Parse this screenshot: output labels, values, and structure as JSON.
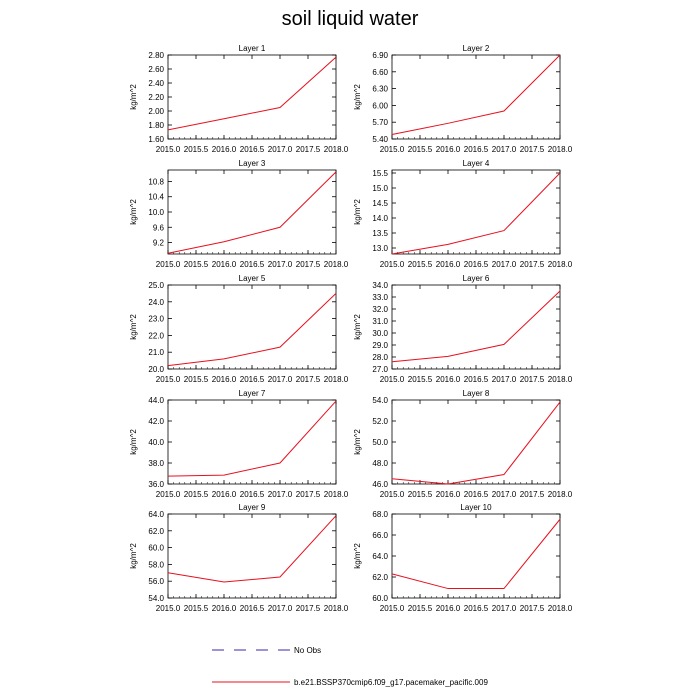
{
  "title": "soil liquid water",
  "legend": {
    "entries": [
      {
        "label": "No Obs",
        "style": "dashed",
        "color": "#3a2aa8"
      },
      {
        "label": "b.e21.BSSP370cmip6.f09_g17.pacemaker_pacific.009",
        "style": "solid",
        "color": "#e8101e"
      }
    ]
  },
  "chart_data": [
    {
      "type": "line",
      "title": "Layer 1",
      "ylabel": "kg/m^2",
      "x": [
        2015,
        2016,
        2017,
        2018
      ],
      "xlim": [
        2015,
        2018
      ],
      "xticks": [
        "2015.0",
        "2015.5",
        "2016.0",
        "2016.5",
        "2017.0",
        "2017.5",
        "2018.0"
      ],
      "ylim": [
        1.6,
        2.8
      ],
      "yticks": [
        "1.60",
        "1.80",
        "2.00",
        "2.20",
        "2.40",
        "2.60",
        "2.80"
      ],
      "series": [
        {
          "name": "b.e21.BSSP370cmip6.f09_g17.pacemaker_pacific.009",
          "values": [
            1.73,
            1.89,
            2.05,
            2.77
          ]
        }
      ]
    },
    {
      "type": "line",
      "title": "Layer 2",
      "ylabel": "kg/m^2",
      "x": [
        2015,
        2016,
        2017,
        2018
      ],
      "xlim": [
        2015,
        2018
      ],
      "xticks": [
        "2015.0",
        "2015.5",
        "2016.0",
        "2016.5",
        "2017.0",
        "2017.5",
        "2018.0"
      ],
      "ylim": [
        5.4,
        6.9
      ],
      "yticks": [
        "5.40",
        "5.70",
        "6.00",
        "6.30",
        "6.60",
        "6.90"
      ],
      "series": [
        {
          "name": "b.e21.BSSP370cmip6.f09_g17.pacemaker_pacific.009",
          "values": [
            5.48,
            5.68,
            5.9,
            6.9
          ]
        }
      ]
    },
    {
      "type": "line",
      "title": "Layer 3",
      "ylabel": "kg/m^2",
      "x": [
        2015,
        2016,
        2017,
        2018
      ],
      "xlim": [
        2015,
        2018
      ],
      "xticks": [
        "2015.0",
        "2015.5",
        "2016.0",
        "2016.5",
        "2017.0",
        "2017.5",
        "2018.0"
      ],
      "ylim": [
        8.9,
        11.1
      ],
      "yticks": [
        "9.2",
        "9.6",
        "10.0",
        "10.4",
        "10.8"
      ],
      "series": [
        {
          "name": "b.e21.BSSP370cmip6.f09_g17.pacemaker_pacific.009",
          "values": [
            8.92,
            9.22,
            9.6,
            11.05
          ]
        }
      ]
    },
    {
      "type": "line",
      "title": "Layer 4",
      "ylabel": "kg/m^2",
      "x": [
        2015,
        2016,
        2017,
        2018
      ],
      "xlim": [
        2015,
        2018
      ],
      "xticks": [
        "2015.0",
        "2015.5",
        "2016.0",
        "2016.5",
        "2017.0",
        "2017.5",
        "2018.0"
      ],
      "ylim": [
        12.8,
        15.6
      ],
      "yticks": [
        "13.0",
        "13.5",
        "14.0",
        "14.5",
        "15.0",
        "15.5"
      ],
      "series": [
        {
          "name": "b.e21.BSSP370cmip6.f09_g17.pacemaker_pacific.009",
          "values": [
            12.8,
            13.12,
            13.58,
            15.5
          ]
        }
      ]
    },
    {
      "type": "line",
      "title": "Layer 5",
      "ylabel": "kg/m^2",
      "x": [
        2015,
        2016,
        2017,
        2018
      ],
      "xlim": [
        2015,
        2018
      ],
      "xticks": [
        "2015.0",
        "2015.5",
        "2016.0",
        "2016.5",
        "2017.0",
        "2017.5",
        "2018.0"
      ],
      "ylim": [
        20.0,
        25.0
      ],
      "yticks": [
        "20.0",
        "21.0",
        "22.0",
        "23.0",
        "24.0",
        "25.0"
      ],
      "series": [
        {
          "name": "b.e21.BSSP370cmip6.f09_g17.pacemaker_pacific.009",
          "values": [
            20.2,
            20.6,
            21.3,
            24.5
          ]
        }
      ]
    },
    {
      "type": "line",
      "title": "Layer 6",
      "ylabel": "kg/m^2",
      "x": [
        2015,
        2016,
        2017,
        2018
      ],
      "xlim": [
        2015,
        2018
      ],
      "xticks": [
        "2015.0",
        "2015.5",
        "2016.0",
        "2016.5",
        "2017.0",
        "2017.5",
        "2018.0"
      ],
      "ylim": [
        27.0,
        34.0
      ],
      "yticks": [
        "27.0",
        "28.0",
        "29.0",
        "30.0",
        "31.0",
        "32.0",
        "33.0",
        "34.0"
      ],
      "series": [
        {
          "name": "b.e21.BSSP370cmip6.f09_g17.pacemaker_pacific.009",
          "values": [
            27.6,
            28.05,
            29.05,
            33.5
          ]
        }
      ]
    },
    {
      "type": "line",
      "title": "Layer 7",
      "ylabel": "kg/m^2",
      "x": [
        2015,
        2016,
        2017,
        2018
      ],
      "xlim": [
        2015,
        2018
      ],
      "xticks": [
        "2015.0",
        "2015.5",
        "2016.0",
        "2016.5",
        "2017.0",
        "2017.5",
        "2018.0"
      ],
      "ylim": [
        36.0,
        44.0
      ],
      "yticks": [
        "36.0",
        "38.0",
        "40.0",
        "42.0",
        "44.0"
      ],
      "series": [
        {
          "name": "b.e21.BSSP370cmip6.f09_g17.pacemaker_pacific.009",
          "values": [
            36.75,
            36.85,
            38.0,
            43.9
          ]
        }
      ]
    },
    {
      "type": "line",
      "title": "Layer 8",
      "ylabel": "kg/m^2",
      "x": [
        2015,
        2016,
        2017,
        2018
      ],
      "xlim": [
        2015,
        2018
      ],
      "xticks": [
        "2015.0",
        "2015.5",
        "2016.0",
        "2016.5",
        "2017.0",
        "2017.5",
        "2018.0"
      ],
      "ylim": [
        46.0,
        54.0
      ],
      "yticks": [
        "46.0",
        "48.0",
        "50.0",
        "52.0",
        "54.0"
      ],
      "series": [
        {
          "name": "b.e21.BSSP370cmip6.f09_g17.pacemaker_pacific.009",
          "values": [
            46.5,
            46.0,
            46.9,
            53.8
          ]
        }
      ]
    },
    {
      "type": "line",
      "title": "Layer 9",
      "ylabel": "kg/m^2",
      "x": [
        2015,
        2016,
        2017,
        2018
      ],
      "xlim": [
        2015,
        2018
      ],
      "xticks": [
        "2015.0",
        "2015.5",
        "2016.0",
        "2016.5",
        "2017.0",
        "2017.5",
        "2018.0"
      ],
      "ylim": [
        54.0,
        64.0
      ],
      "yticks": [
        "54.0",
        "56.0",
        "58.0",
        "60.0",
        "62.0",
        "64.0"
      ],
      "series": [
        {
          "name": "b.e21.BSSP370cmip6.f09_g17.pacemaker_pacific.009",
          "values": [
            57.0,
            55.9,
            56.5,
            63.8
          ]
        }
      ]
    },
    {
      "type": "line",
      "title": "Layer 10",
      "ylabel": "kg/m^2",
      "x": [
        2015,
        2016,
        2017,
        2018
      ],
      "xlim": [
        2015,
        2018
      ],
      "xticks": [
        "2015.0",
        "2015.5",
        "2016.0",
        "2016.5",
        "2017.0",
        "2017.5",
        "2018.0"
      ],
      "ylim": [
        60.0,
        68.0
      ],
      "yticks": [
        "60.0",
        "62.0",
        "64.0",
        "66.0",
        "68.0"
      ],
      "series": [
        {
          "name": "b.e21.BSSP370cmip6.f09_g17.pacemaker_pacific.009",
          "values": [
            62.3,
            60.9,
            60.9,
            67.5
          ]
        }
      ]
    }
  ]
}
